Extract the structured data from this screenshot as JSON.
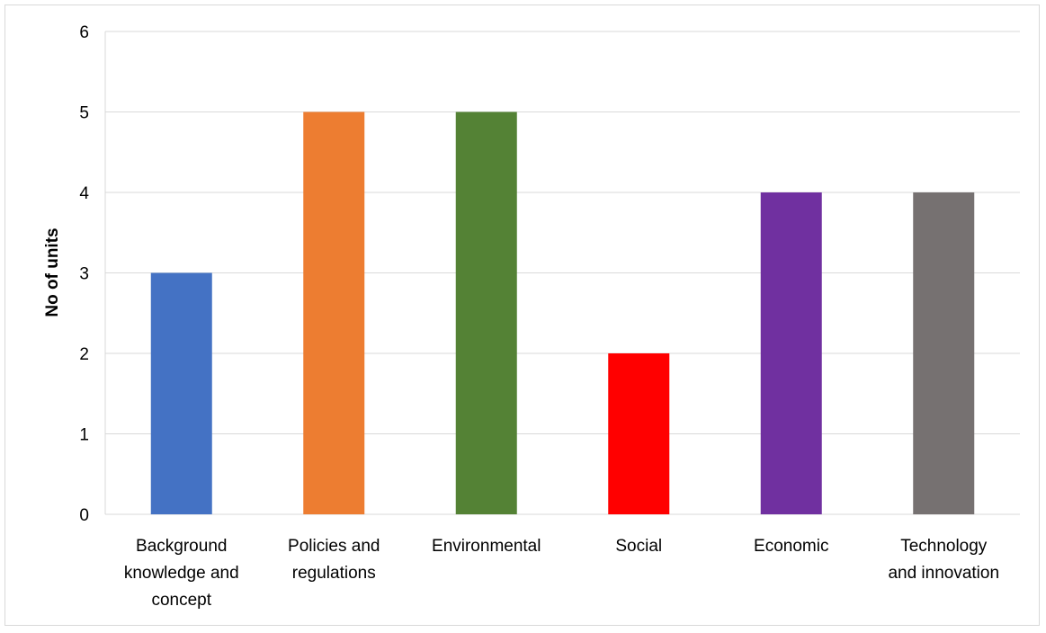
{
  "chart_data": {
    "type": "bar",
    "categories": [
      [
        "Background",
        "knowledge and",
        "concept"
      ],
      [
        "Policies and",
        "regulations"
      ],
      [
        "Environmental"
      ],
      [
        "Social"
      ],
      [
        "Economic"
      ],
      [
        "Technology",
        "and innovation"
      ]
    ],
    "values": [
      3,
      5,
      5,
      2,
      4,
      4
    ],
    "colors": [
      "#4472c4",
      "#ed7d31",
      "#548235",
      "#ff0000",
      "#7030a0",
      "#767171"
    ],
    "title": "",
    "xlabel": "",
    "ylabel": "No of units",
    "ylim": [
      0,
      6
    ],
    "yticks": [
      0,
      1,
      2,
      3,
      4,
      5,
      6
    ],
    "grid": true,
    "legend": "none"
  }
}
